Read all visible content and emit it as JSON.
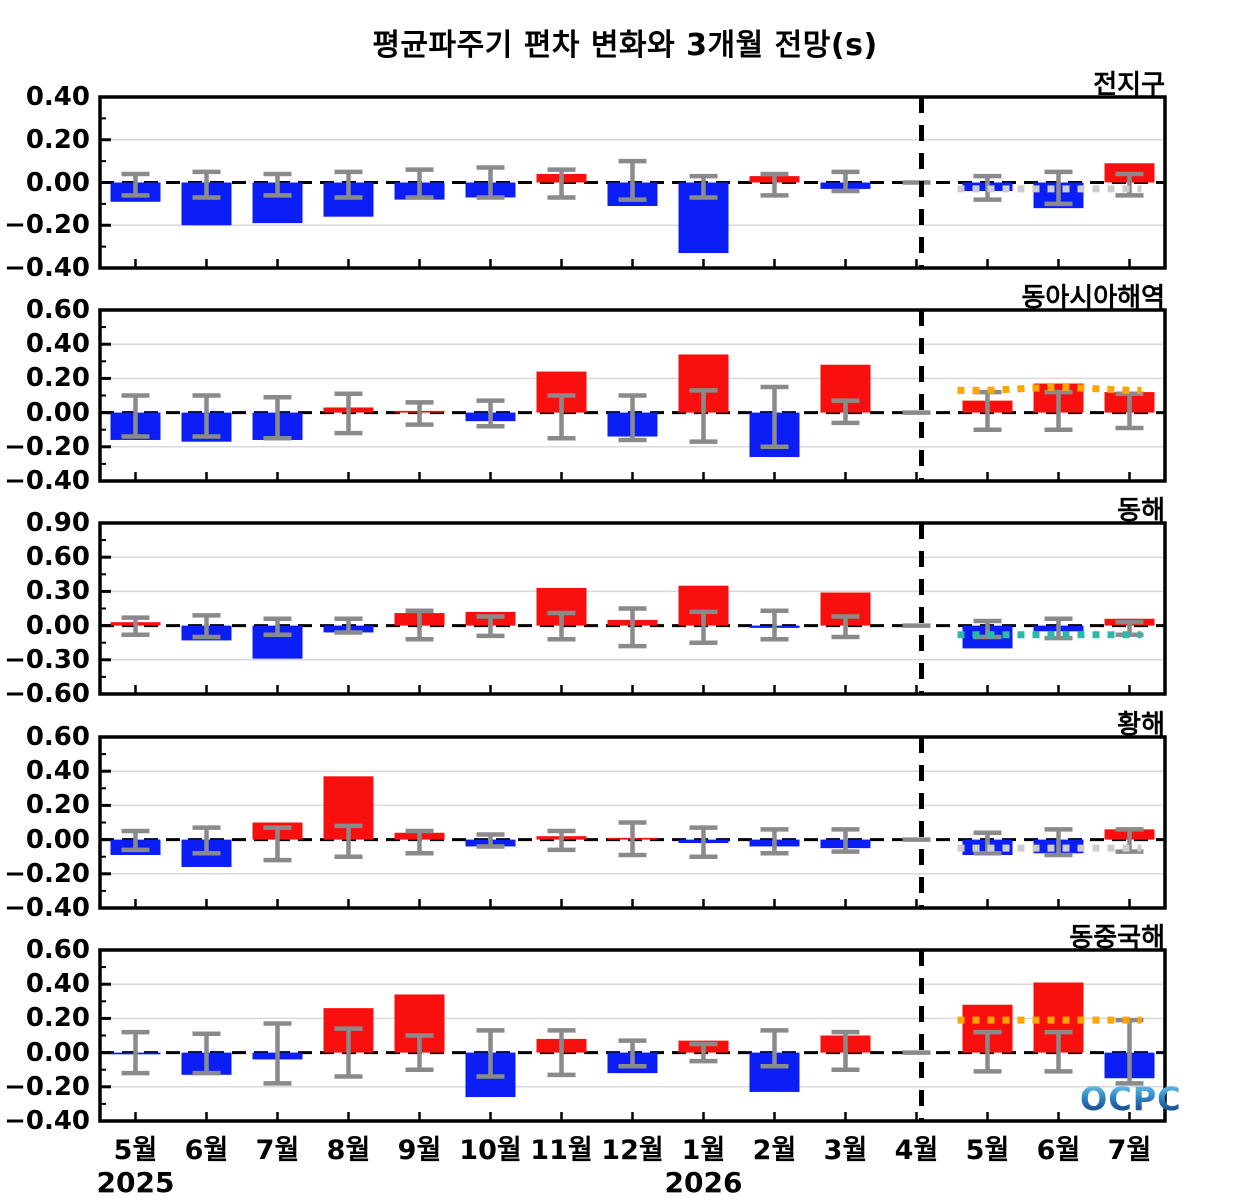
{
  "title": "평균파주기 편차 변화와 3개월 전망(s)",
  "logo": {
    "text": "OCPC"
  },
  "x_axis": {
    "months": [
      "5월",
      "6월",
      "7월",
      "8월",
      "9월",
      "10월",
      "11월",
      "12월",
      "1월",
      "2월",
      "3월",
      "4월",
      "5월",
      "6월",
      "7월"
    ],
    "years": [
      {
        "label": "2025",
        "month_index": 0
      },
      {
        "label": "2026",
        "month_index": 8
      }
    ]
  },
  "divider_month_index": 11,
  "colors": {
    "positive_bar": "#fa0f0f",
    "negative_bar": "#0b1ef5",
    "error_bar": "#8a8a8a",
    "zero_line": "#000000",
    "grid_line": "#d9d9d9",
    "divider": "#000000"
  },
  "chart_data": [
    {
      "type": "bar",
      "region": "전지구",
      "ylim": [
        -0.4,
        0.4
      ],
      "yticks": [
        0.4,
        0.2,
        0.0,
        -0.2,
        -0.4
      ],
      "ytick_labels": [
        "0.40",
        "0.20",
        "0.00",
        "−0.20",
        "−0.40"
      ],
      "categories": [
        "5월",
        "6월",
        "7월",
        "8월",
        "9월",
        "10월",
        "11월",
        "12월",
        "1월",
        "2월",
        "3월",
        "4월",
        "5월",
        "6월",
        "7월"
      ],
      "values": [
        -0.09,
        -0.2,
        -0.19,
        -0.16,
        -0.08,
        -0.07,
        0.04,
        -0.11,
        -0.33,
        0.03,
        -0.03,
        0.0,
        -0.04,
        -0.12,
        0.09
      ],
      "error_lo": [
        -0.06,
        -0.07,
        -0.06,
        -0.07,
        -0.07,
        -0.07,
        -0.07,
        -0.08,
        -0.07,
        -0.06,
        -0.04,
        0.0,
        -0.08,
        -0.1,
        -0.06
      ],
      "error_hi": [
        0.04,
        0.05,
        0.04,
        0.05,
        0.06,
        0.07,
        0.06,
        0.1,
        0.03,
        0.04,
        0.05,
        0.0,
        0.03,
        0.05,
        0.04
      ],
      "forecast_line": {
        "color": "#cccccc",
        "values": [
          -0.03,
          -0.03,
          -0.03
        ]
      }
    },
    {
      "type": "bar",
      "region": "동아시아해역",
      "ylim": [
        -0.4,
        0.6
      ],
      "yticks": [
        0.6,
        0.4,
        0.2,
        0.0,
        -0.2,
        -0.4
      ],
      "ytick_labels": [
        "0.60",
        "0.40",
        "0.20",
        "0.00",
        "−0.20",
        "−0.40"
      ],
      "categories": [
        "5월",
        "6월",
        "7월",
        "8월",
        "9월",
        "10월",
        "11월",
        "12월",
        "1월",
        "2월",
        "3월",
        "4월",
        "5월",
        "6월",
        "7월"
      ],
      "values": [
        -0.16,
        -0.17,
        -0.16,
        0.03,
        0.01,
        -0.05,
        0.24,
        -0.14,
        0.34,
        -0.26,
        0.28,
        0.0,
        0.07,
        0.17,
        0.12
      ],
      "error_lo": [
        -0.14,
        -0.14,
        -0.15,
        -0.12,
        -0.07,
        -0.08,
        -0.15,
        -0.16,
        -0.17,
        -0.2,
        -0.06,
        0.0,
        -0.1,
        -0.1,
        -0.09
      ],
      "error_hi": [
        0.1,
        0.1,
        0.09,
        0.11,
        0.06,
        0.07,
        0.1,
        0.1,
        0.13,
        0.15,
        0.07,
        0.0,
        0.12,
        0.12,
        0.11
      ],
      "forecast_line": {
        "color": "#ffa500",
        "values": [
          0.13,
          0.15,
          0.13
        ]
      }
    },
    {
      "type": "bar",
      "region": "동해",
      "ylim": [
        -0.6,
        0.9
      ],
      "yticks": [
        0.9,
        0.6,
        0.3,
        0.0,
        -0.3,
        -0.6
      ],
      "ytick_labels": [
        "0.90",
        "0.60",
        "0.30",
        "0.00",
        "−0.30",
        "−0.60"
      ],
      "categories": [
        "5월",
        "6월",
        "7월",
        "8월",
        "9월",
        "10월",
        "11월",
        "12월",
        "1월",
        "2월",
        "3월",
        "4월",
        "5월",
        "6월",
        "7월"
      ],
      "values": [
        0.03,
        -0.13,
        -0.29,
        -0.06,
        0.11,
        0.12,
        0.33,
        0.05,
        0.35,
        -0.02,
        0.29,
        0.0,
        -0.2,
        -0.05,
        0.06
      ],
      "error_lo": [
        -0.08,
        -0.1,
        -0.08,
        -0.06,
        -0.12,
        -0.09,
        -0.12,
        -0.18,
        -0.15,
        -0.12,
        -0.1,
        0.0,
        -0.1,
        -0.11,
        -0.08
      ],
      "error_hi": [
        0.07,
        0.09,
        0.06,
        0.06,
        0.13,
        0.08,
        0.11,
        0.15,
        0.12,
        0.13,
        0.08,
        0.0,
        0.04,
        0.06,
        0.03
      ],
      "forecast_line": {
        "color": "#2eb8a8",
        "values": [
          -0.08,
          -0.08,
          -0.08
        ]
      }
    },
    {
      "type": "bar",
      "region": "황해",
      "ylim": [
        -0.4,
        0.6
      ],
      "yticks": [
        0.6,
        0.4,
        0.2,
        0.0,
        -0.2,
        -0.4
      ],
      "ytick_labels": [
        "0.60",
        "0.40",
        "0.20",
        "0.00",
        "−0.20",
        "−0.40"
      ],
      "categories": [
        "5월",
        "6월",
        "7월",
        "8월",
        "9월",
        "10월",
        "11월",
        "12월",
        "1월",
        "2월",
        "3월",
        "4월",
        "5월",
        "6월",
        "7월"
      ],
      "values": [
        -0.09,
        -0.16,
        0.1,
        0.37,
        0.04,
        -0.04,
        0.02,
        0.01,
        -0.02,
        -0.04,
        -0.05,
        0.0,
        -0.09,
        -0.08,
        0.06
      ],
      "error_lo": [
        -0.06,
        -0.08,
        -0.12,
        -0.1,
        -0.08,
        -0.04,
        -0.06,
        -0.09,
        -0.1,
        -0.08,
        -0.07,
        0.0,
        -0.08,
        -0.09,
        -0.07
      ],
      "error_hi": [
        0.05,
        0.07,
        0.07,
        0.08,
        0.05,
        0.03,
        0.05,
        0.1,
        0.07,
        0.06,
        0.06,
        0.0,
        0.04,
        0.06,
        0.06
      ],
      "forecast_line": {
        "color": "#cccccc",
        "values": [
          -0.05,
          -0.05,
          -0.05
        ]
      }
    },
    {
      "type": "bar",
      "region": "동중국해",
      "ylim": [
        -0.4,
        0.6
      ],
      "yticks": [
        0.6,
        0.4,
        0.2,
        0.0,
        -0.2,
        -0.4
      ],
      "ytick_labels": [
        "0.60",
        "0.40",
        "0.20",
        "0.00",
        "−0.20",
        "−0.40"
      ],
      "categories": [
        "5월",
        "6월",
        "7월",
        "8월",
        "9월",
        "10월",
        "11월",
        "12월",
        "1월",
        "2월",
        "3월",
        "4월",
        "5월",
        "6월",
        "7월"
      ],
      "values": [
        -0.01,
        -0.13,
        -0.04,
        0.26,
        0.34,
        -0.26,
        0.08,
        -0.12,
        0.07,
        -0.23,
        0.1,
        0.0,
        0.28,
        0.41,
        -0.15
      ],
      "error_lo": [
        -0.12,
        -0.12,
        -0.18,
        -0.14,
        -0.1,
        -0.14,
        -0.13,
        -0.08,
        -0.05,
        -0.08,
        -0.1,
        0.0,
        -0.11,
        -0.11,
        -0.18
      ],
      "error_hi": [
        0.12,
        0.11,
        0.17,
        0.14,
        0.1,
        0.13,
        0.13,
        0.07,
        0.05,
        0.13,
        0.12,
        0.0,
        0.12,
        0.12,
        0.19
      ],
      "forecast_line": {
        "color": "#ffa500",
        "values": [
          0.19,
          0.19,
          0.19
        ]
      }
    }
  ]
}
